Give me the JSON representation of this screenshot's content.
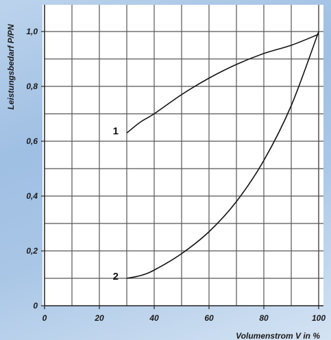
{
  "chart_data": {
    "type": "line",
    "title": "",
    "xlabel": "Volumenstrom V in %",
    "ylabel": "Leistungsbedarf P/PN",
    "xlim": [
      0,
      100
    ],
    "ylim": [
      0,
      1.1
    ],
    "x_ticks": [
      0,
      20,
      40,
      60,
      80,
      100
    ],
    "x_tick_labels": [
      "0",
      "20",
      "40",
      "60",
      "80",
      "100"
    ],
    "y_ticks": [
      0,
      0.2,
      0.4,
      0.6,
      0.8,
      1.0
    ],
    "y_tick_labels": [
      "0",
      "0,2",
      "0,4",
      "0,6",
      "0,8",
      "1,0"
    ],
    "grid": true,
    "series": [
      {
        "label": "1",
        "x": [
          30,
          35,
          40,
          50,
          60,
          70,
          80,
          90,
          100
        ],
        "y": [
          0.63,
          0.67,
          0.7,
          0.77,
          0.83,
          0.88,
          0.92,
          0.95,
          0.99
        ]
      },
      {
        "label": "2",
        "x": [
          30,
          35,
          40,
          50,
          60,
          70,
          80,
          90,
          100
        ],
        "y": [
          0.1,
          0.11,
          0.13,
          0.19,
          0.27,
          0.38,
          0.53,
          0.73,
          1.0
        ]
      }
    ]
  }
}
